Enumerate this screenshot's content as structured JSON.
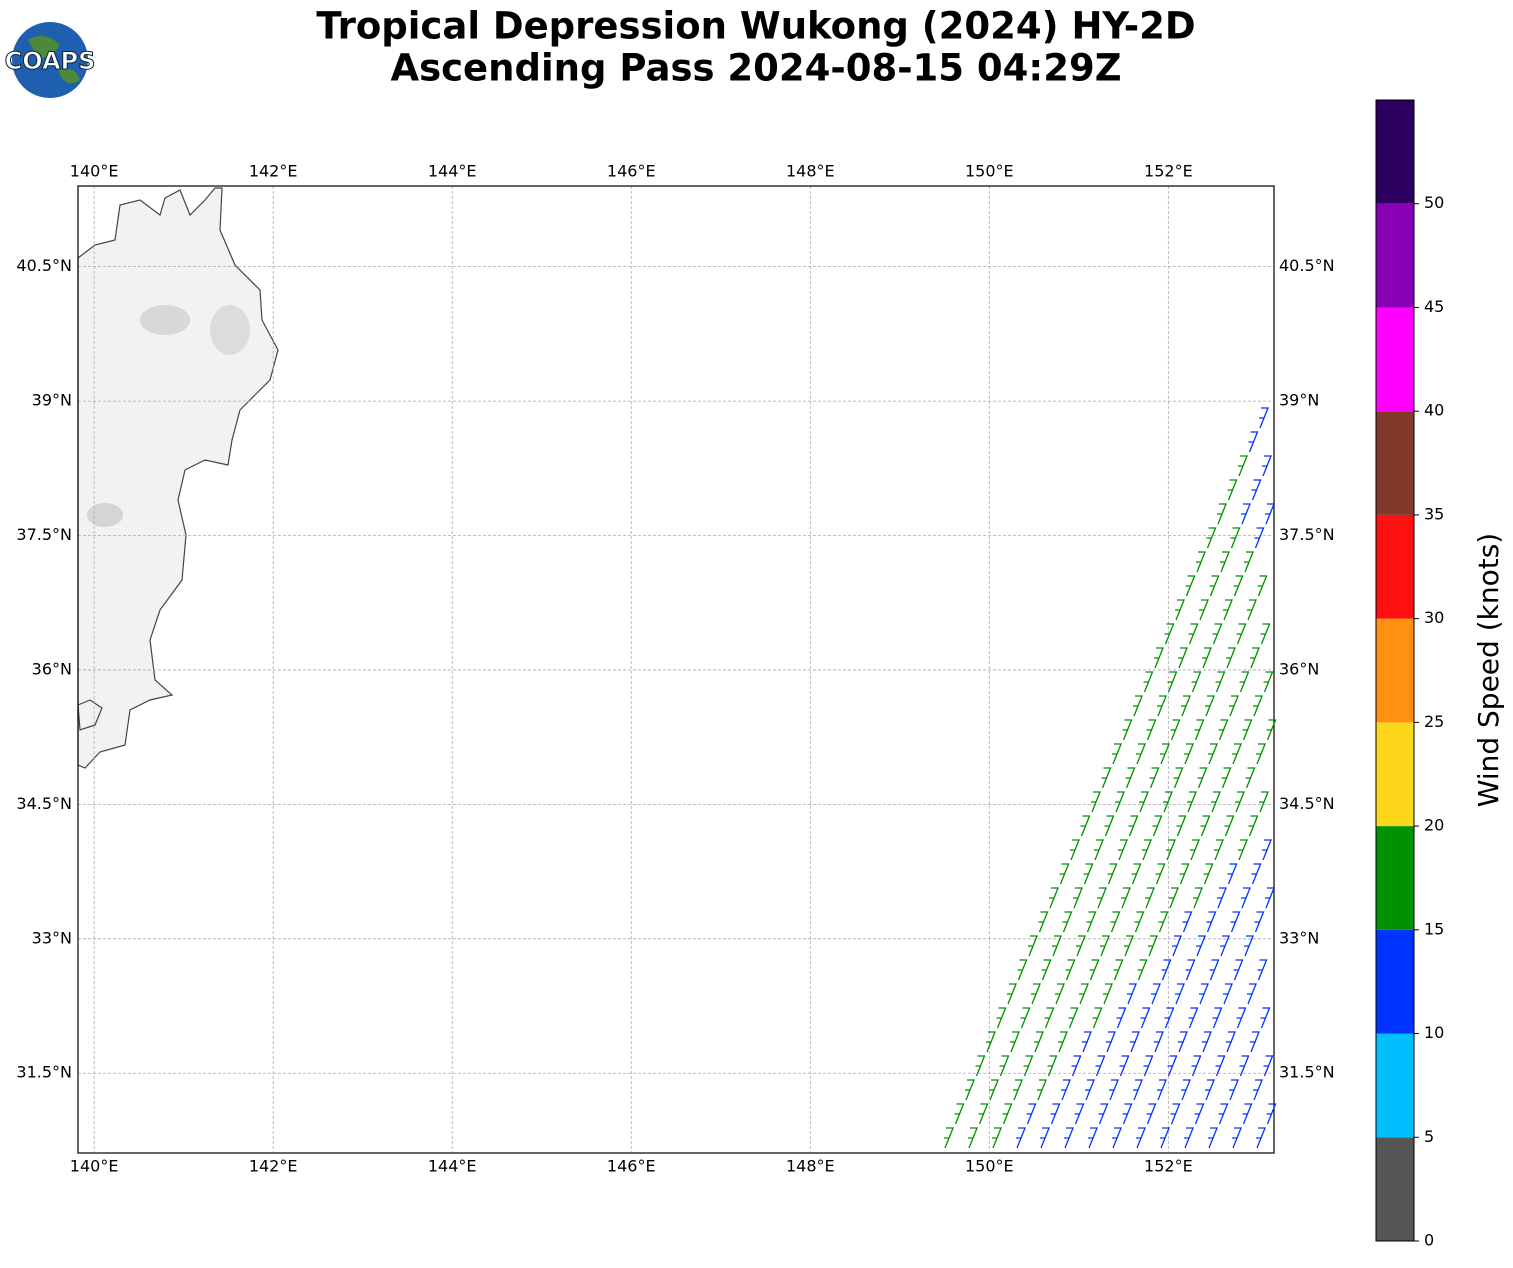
{
  "logo": "COAPS",
  "title_lines": [
    "Tropical Depression Wukong (2024) HY-2D",
    "Ascending Pass 2024-08-15 04:29Z"
  ],
  "map": {
    "xlim": [
      139.82,
      153.18
    ],
    "ylim": [
      30.61,
      41.4
    ],
    "grid": true,
    "xticks": [
      {
        "value": 140,
        "label": "140°E"
      },
      {
        "value": 142,
        "label": "142°E"
      },
      {
        "value": 144,
        "label": "144°E"
      },
      {
        "value": 146,
        "label": "146°E"
      },
      {
        "value": 148,
        "label": "148°E"
      },
      {
        "value": 150,
        "label": "150°E"
      },
      {
        "value": 152,
        "label": "152°E"
      }
    ],
    "yticks": [
      {
        "value": 31.5,
        "label": "31.5°N"
      },
      {
        "value": 33,
        "label": "33°N"
      },
      {
        "value": 34.5,
        "label": "34.5°N"
      },
      {
        "value": 36,
        "label": "36°N"
      },
      {
        "value": 37.5,
        "label": "37.5°N"
      },
      {
        "value": 39,
        "label": "39°N"
      },
      {
        "value": 40.5,
        "label": "40.5°N"
      }
    ]
  },
  "colorbar": {
    "label": "Wind Speed (knots)",
    "lim": [
      0,
      55
    ],
    "ticks": [
      0,
      5,
      10,
      15,
      20,
      25,
      30,
      35,
      40,
      45,
      50
    ],
    "colors": [
      "#555555",
      "#00bfff",
      "#0033ff",
      "#009000",
      "#fcd71a",
      "#ff9010",
      "#ff1010",
      "#80392a",
      "#ff00ff",
      "#8800b4",
      "#2b0060"
    ]
  }
}
